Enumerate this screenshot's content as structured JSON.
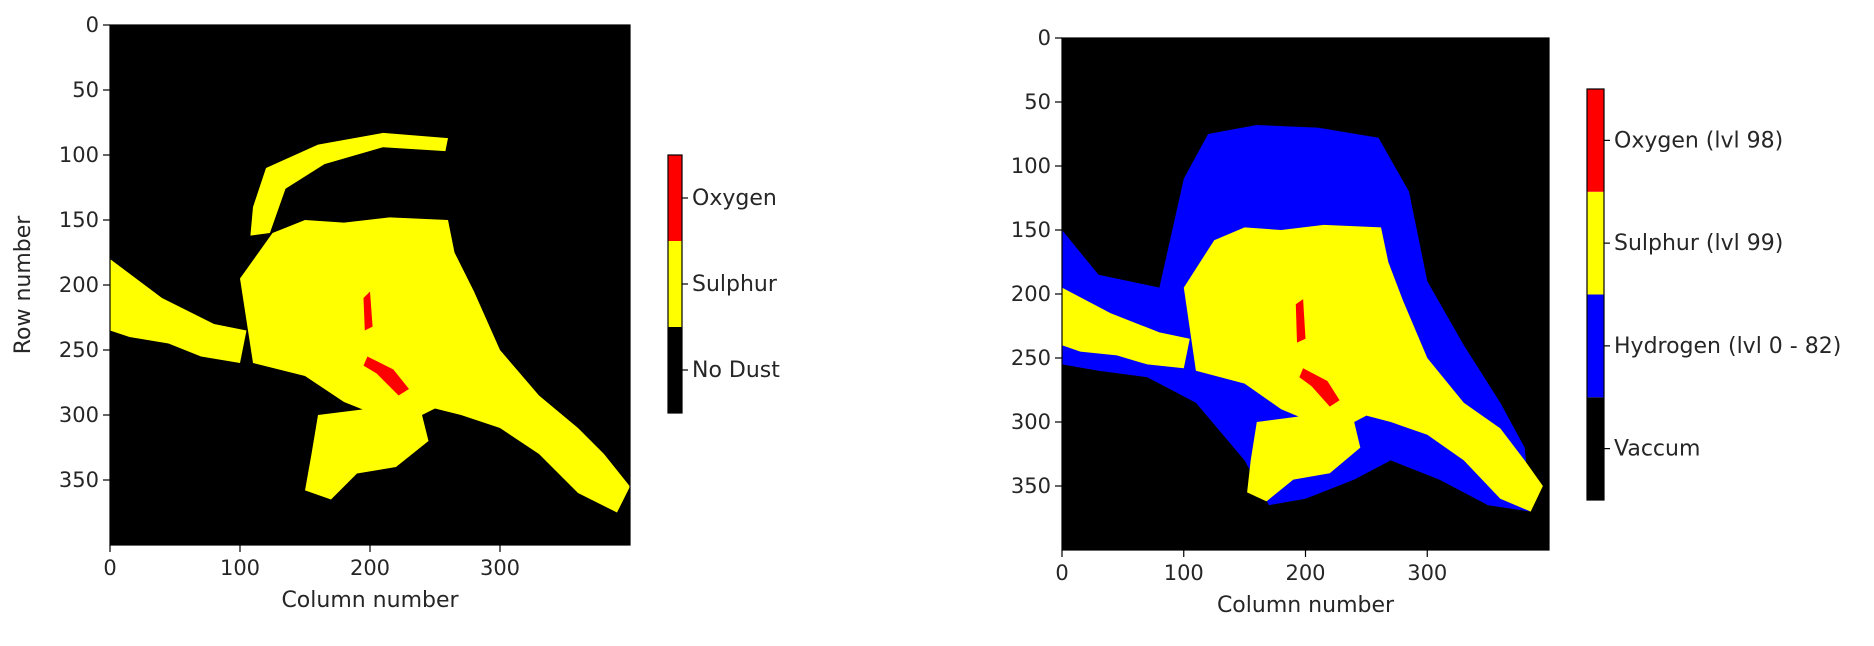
{
  "chart_data": [
    {
      "type": "heatmap",
      "title": "",
      "xlabel": "Column number",
      "ylabel": "Row number",
      "xlim": [
        0,
        400
      ],
      "ylim": [
        400,
        0
      ],
      "x_ticks": [
        0,
        100,
        200,
        300
      ],
      "y_ticks": [
        0,
        50,
        100,
        150,
        200,
        250,
        300,
        350
      ],
      "grid": false,
      "legend": "colorbar-right",
      "colorbar": {
        "categories": [
          "No Dust",
          "Sulphur",
          "Oxygen"
        ],
        "colors": [
          "#000000",
          "#ffff00",
          "#ff0000"
        ]
      },
      "regions": [
        {
          "class": "Sulphur",
          "desc": "main body",
          "points": [
            [
              100,
              195
            ],
            [
              125,
              160
            ],
            [
              150,
              150
            ],
            [
              180,
              152
            ],
            [
              215,
              148
            ],
            [
              260,
              150
            ],
            [
              265,
              175
            ],
            [
              280,
              205
            ],
            [
              300,
              250
            ],
            [
              330,
              285
            ],
            [
              360,
              310
            ],
            [
              380,
              330
            ],
            [
              400,
              355
            ],
            [
              390,
              375
            ],
            [
              360,
              360
            ],
            [
              330,
              330
            ],
            [
              300,
              310
            ],
            [
              270,
              300
            ],
            [
              250,
              295
            ],
            [
              230,
              305
            ],
            [
              205,
              300
            ],
            [
              180,
              290
            ],
            [
              150,
              270
            ],
            [
              110,
              260
            ]
          ]
        },
        {
          "class": "Sulphur",
          "desc": "left arm",
          "points": [
            [
              0,
              180
            ],
            [
              40,
              210
            ],
            [
              80,
              230
            ],
            [
              105,
              235
            ],
            [
              100,
              260
            ],
            [
              70,
              255
            ],
            [
              45,
              245
            ],
            [
              15,
              240
            ],
            [
              0,
              235
            ]
          ]
        },
        {
          "class": "Sulphur",
          "desc": "lower lobe",
          "points": [
            [
              160,
              300
            ],
            [
              200,
              295
            ],
            [
              240,
              300
            ],
            [
              245,
              320
            ],
            [
              220,
              340
            ],
            [
              190,
              345
            ],
            [
              170,
              365
            ],
            [
              150,
              358
            ],
            [
              155,
              330
            ]
          ]
        },
        {
          "class": "Sulphur",
          "desc": "upper arc",
          "points": [
            [
              110,
              140
            ],
            [
              120,
              110
            ],
            [
              160,
              92
            ],
            [
              210,
              83
            ],
            [
              260,
              87
            ],
            [
              258,
              97
            ],
            [
              210,
              94
            ],
            [
              165,
              107
            ],
            [
              135,
              126
            ],
            [
              123,
              160
            ],
            [
              108,
              162
            ]
          ]
        },
        {
          "class": "Oxygen",
          "desc": "streak",
          "points": [
            [
              195,
              210
            ],
            [
              200,
              205
            ],
            [
              202,
              232
            ],
            [
              196,
              235
            ]
          ]
        },
        {
          "class": "Oxygen",
          "desc": "speck",
          "points": [
            [
              198,
              255
            ],
            [
              218,
              265
            ],
            [
              230,
              280
            ],
            [
              222,
              285
            ],
            [
              205,
              268
            ],
            [
              195,
              262
            ]
          ]
        }
      ]
    },
    {
      "type": "heatmap",
      "title": "",
      "xlabel": "Column number",
      "ylabel": "",
      "xlim": [
        0,
        400
      ],
      "ylim": [
        400,
        0
      ],
      "x_ticks": [
        0,
        100,
        200,
        300
      ],
      "y_ticks": [
        0,
        50,
        100,
        150,
        200,
        250,
        300,
        350
      ],
      "grid": false,
      "legend": "colorbar-right",
      "colorbar": {
        "categories": [
          "Vaccum",
          "Hydrogen (lvl 0 - 82)",
          "Sulphur (lvl 99)",
          "Oxygen (lvl 98)"
        ],
        "colors": [
          "#000000",
          "#0000ff",
          "#ffff00",
          "#ff0000"
        ]
      },
      "regions": [
        {
          "class": "Hydrogen (lvl 0 - 82)",
          "desc": "halo",
          "points": [
            [
              0,
              150
            ],
            [
              30,
              185
            ],
            [
              80,
              195
            ],
            [
              100,
              110
            ],
            [
              120,
              75
            ],
            [
              160,
              68
            ],
            [
              210,
              70
            ],
            [
              260,
              78
            ],
            [
              285,
              120
            ],
            [
              300,
              190
            ],
            [
              330,
              240
            ],
            [
              360,
              285
            ],
            [
              380,
              320
            ],
            [
              385,
              370
            ],
            [
              350,
              365
            ],
            [
              310,
              345
            ],
            [
              270,
              330
            ],
            [
              240,
              345
            ],
            [
              200,
              360
            ],
            [
              170,
              365
            ],
            [
              150,
              330
            ],
            [
              110,
              285
            ],
            [
              70,
              265
            ],
            [
              30,
              260
            ],
            [
              0,
              255
            ]
          ]
        },
        {
          "class": "Sulphur (lvl 99)",
          "desc": "main body",
          "points": [
            [
              100,
              195
            ],
            [
              125,
              158
            ],
            [
              150,
              148
            ],
            [
              180,
              150
            ],
            [
              215,
              146
            ],
            [
              262,
              148
            ],
            [
              268,
              175
            ],
            [
              280,
              205
            ],
            [
              300,
              250
            ],
            [
              330,
              285
            ],
            [
              360,
              305
            ],
            [
              380,
              330
            ],
            [
              395,
              350
            ],
            [
              385,
              370
            ],
            [
              360,
              360
            ],
            [
              330,
              330
            ],
            [
              300,
              310
            ],
            [
              270,
              300
            ],
            [
              250,
              295
            ],
            [
              230,
              305
            ],
            [
              205,
              300
            ],
            [
              180,
              290
            ],
            [
              150,
              270
            ],
            [
              110,
              260
            ]
          ]
        },
        {
          "class": "Sulphur (lvl 99)",
          "desc": "left arm",
          "points": [
            [
              0,
              195
            ],
            [
              40,
              215
            ],
            [
              80,
              230
            ],
            [
              105,
              235
            ],
            [
              100,
              258
            ],
            [
              70,
              255
            ],
            [
              45,
              248
            ],
            [
              15,
              245
            ],
            [
              0,
              240
            ]
          ]
        },
        {
          "class": "Sulphur (lvl 99)",
          "desc": "lower lobe",
          "points": [
            [
              160,
              300
            ],
            [
              200,
              295
            ],
            [
              240,
              300
            ],
            [
              245,
              320
            ],
            [
              220,
              340
            ],
            [
              190,
              345
            ],
            [
              168,
              362
            ],
            [
              152,
              355
            ],
            [
              155,
              330
            ]
          ]
        },
        {
          "class": "Oxygen (lvl 98)",
          "desc": "streak",
          "points": [
            [
              192,
              208
            ],
            [
              198,
              204
            ],
            [
              200,
              235
            ],
            [
              193,
              238
            ]
          ]
        },
        {
          "class": "Oxygen (lvl 98)",
          "desc": "speck",
          "points": [
            [
              198,
              258
            ],
            [
              218,
              268
            ],
            [
              228,
              283
            ],
            [
              220,
              288
            ],
            [
              205,
              272
            ],
            [
              195,
              265
            ]
          ]
        }
      ]
    }
  ]
}
